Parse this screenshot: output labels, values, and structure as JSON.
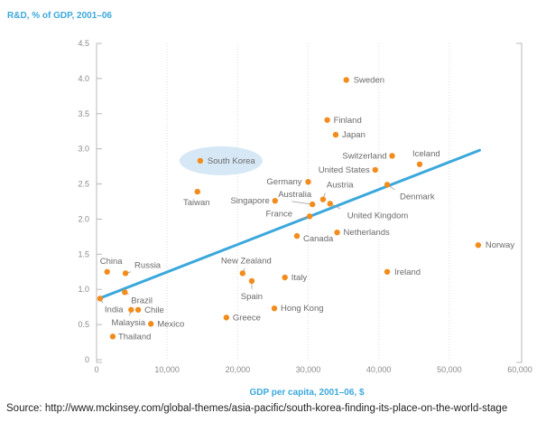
{
  "colors": {
    "accent": "#3ba8dc",
    "point": "#f28c1c",
    "highlight": "#d6e8f5",
    "axis": "#b8b8b8",
    "grid": "#e8e8e8",
    "label": "#6a6a6a"
  },
  "source_note": "Source:  http://www.mckinsey.com/global-themes/asia-pacific/south-korea-finding-its-place-on-the-world-stage",
  "chart_data": {
    "type": "scatter",
    "title": "R&D, % of GDP, 2001–06",
    "xlabel": "GDP per capita, 2001–06, $",
    "ylabel": "R&D, % of GDP, 2001–06",
    "xlim": [
      0,
      60000
    ],
    "ylim": [
      0,
      4.5
    ],
    "xticks": [
      0,
      10000,
      20000,
      30000,
      40000,
      50000,
      60000
    ],
    "xtick_labels": [
      "0",
      "10,000",
      "20,000",
      "30,000",
      "40,000",
      "50,000",
      "60,000"
    ],
    "yticks": [
      0,
      0.5,
      1.0,
      1.5,
      2.0,
      2.5,
      3.0,
      3.5,
      4.0,
      4.5
    ],
    "ytick_labels": [
      "0",
      "0.5",
      "1.0",
      "1.5",
      "2.0",
      "2.5",
      "3.0",
      "3.5",
      "4.0",
      "4.5"
    ],
    "grid": "vertical-dotted",
    "highlighted": "South Korea",
    "trendline": {
      "x": [
        600,
        54300
      ],
      "y": [
        0.88,
        2.98
      ]
    },
    "points": [
      {
        "name": "Sweden",
        "x": 35400,
        "y": 3.98
      },
      {
        "name": "Finland",
        "x": 32700,
        "y": 3.41
      },
      {
        "name": "Japan",
        "x": 33900,
        "y": 3.2
      },
      {
        "name": "Switzerland",
        "x": 41900,
        "y": 2.9
      },
      {
        "name": "Iceland",
        "x": 45800,
        "y": 2.78
      },
      {
        "name": "United States",
        "x": 39500,
        "y": 2.7
      },
      {
        "name": "South Korea",
        "x": 14700,
        "y": 2.83
      },
      {
        "name": "Germany",
        "x": 30000,
        "y": 2.53
      },
      {
        "name": "Denmark",
        "x": 41200,
        "y": 2.49
      },
      {
        "name": "Taiwan",
        "x": 14300,
        "y": 2.39
      },
      {
        "name": "Austria",
        "x": 32100,
        "y": 2.28
      },
      {
        "name": "Singapore",
        "x": 25300,
        "y": 2.26
      },
      {
        "name": "Australia",
        "x": 30600,
        "y": 2.21
      },
      {
        "name": "United Kingdom",
        "x": 33100,
        "y": 2.22
      },
      {
        "name": "France",
        "x": 30200,
        "y": 2.04
      },
      {
        "name": "Netherlands",
        "x": 34100,
        "y": 1.81
      },
      {
        "name": "Canada",
        "x": 28400,
        "y": 1.76
      },
      {
        "name": "Norway",
        "x": 54100,
        "y": 1.63
      },
      {
        "name": "China",
        "x": 1500,
        "y": 1.25
      },
      {
        "name": "Russia",
        "x": 4100,
        "y": 1.23
      },
      {
        "name": "Ireland",
        "x": 41200,
        "y": 1.25
      },
      {
        "name": "New Zealand",
        "x": 20700,
        "y": 1.23
      },
      {
        "name": "Italy",
        "x": 26700,
        "y": 1.17
      },
      {
        "name": "Spain",
        "x": 22000,
        "y": 1.12
      },
      {
        "name": "Brazil",
        "x": 4000,
        "y": 0.96
      },
      {
        "name": "India",
        "x": 500,
        "y": 0.87
      },
      {
        "name": "Hong Kong",
        "x": 25200,
        "y": 0.73
      },
      {
        "name": "Malaysia",
        "x": 4900,
        "y": 0.71
      },
      {
        "name": "Chile",
        "x": 5900,
        "y": 0.71
      },
      {
        "name": "Greece",
        "x": 18400,
        "y": 0.6
      },
      {
        "name": "Mexico",
        "x": 7700,
        "y": 0.51
      },
      {
        "name": "Thailand",
        "x": 2300,
        "y": 0.33
      }
    ]
  }
}
